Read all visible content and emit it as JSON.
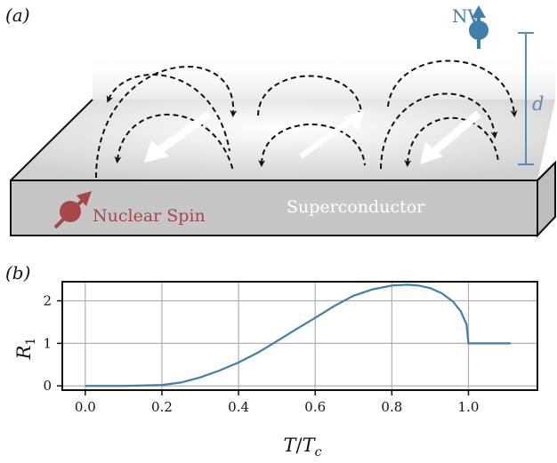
{
  "panel_a": {
    "label": "(a)",
    "nv_label": "NV",
    "distance_label": "d",
    "nuclear_spin_label": "Nuclear Spin",
    "superconductor_label": "Superconductor",
    "colors": {
      "nv": "#3f7fa8",
      "nuclear": "#a8474a",
      "slab": "#c6c6c6",
      "distance": "#5a8db3"
    }
  },
  "panel_b": {
    "label": "(b)"
  },
  "chart_data": {
    "type": "line",
    "xlabel_main": "T",
    "xlabel_sub": "c",
    "ylabel_main": "R",
    "ylabel_sub": "1",
    "xlim": [
      -0.06,
      1.18
    ],
    "ylim": [
      -0.1,
      2.45
    ],
    "x_ticks": [
      0.0,
      0.2,
      0.4,
      0.6,
      0.8,
      1.0
    ],
    "x_tick_labels": [
      "0.0",
      "0.2",
      "0.4",
      "0.6",
      "0.8",
      "1.0"
    ],
    "y_ticks": [
      0,
      1,
      2
    ],
    "y_tick_labels": [
      "0",
      "1",
      "2"
    ],
    "grid": true,
    "line_color": "#3f7fa8",
    "series": [
      {
        "x": [
          0.0,
          0.1,
          0.2,
          0.25,
          0.3,
          0.35,
          0.4,
          0.45,
          0.5,
          0.55,
          0.6,
          0.65,
          0.7,
          0.75,
          0.8,
          0.84,
          0.87,
          0.9,
          0.93,
          0.96,
          0.98,
          0.995,
          1.0,
          1.0,
          1.05,
          1.11
        ],
        "y": [
          0.0,
          0.0,
          0.02,
          0.08,
          0.2,
          0.36,
          0.55,
          0.78,
          1.05,
          1.33,
          1.6,
          1.88,
          2.12,
          2.27,
          2.36,
          2.38,
          2.36,
          2.3,
          2.18,
          1.98,
          1.75,
          1.45,
          1.0,
          1.0,
          1.0,
          1.0
        ]
      }
    ]
  }
}
